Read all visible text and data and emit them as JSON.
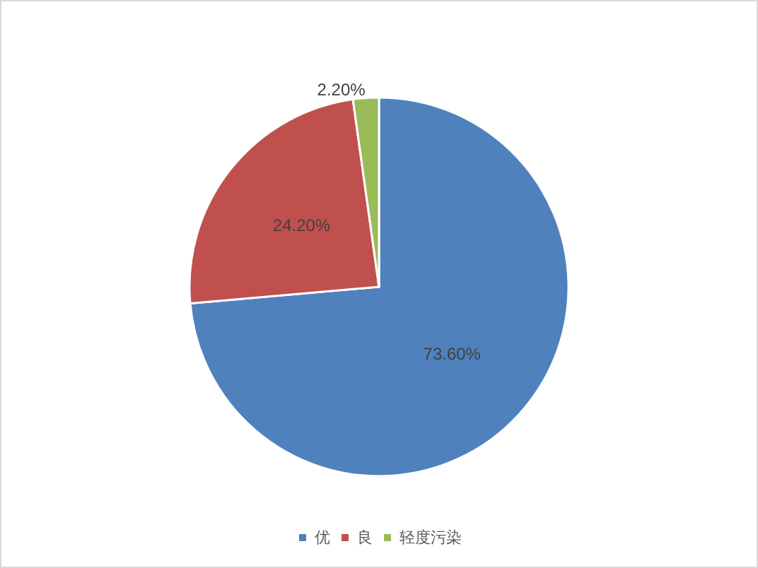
{
  "chart_data": {
    "type": "pie",
    "categories": [
      "优",
      "良",
      "轻度污染"
    ],
    "values": [
      73.6,
      24.2,
      2.2
    ],
    "colors": [
      "#4f81bd",
      "#c0504d",
      "#9bbb59"
    ],
    "value_labels": [
      "73.60%",
      "24.20%",
      "2.20%"
    ],
    "legend": "bottom"
  }
}
